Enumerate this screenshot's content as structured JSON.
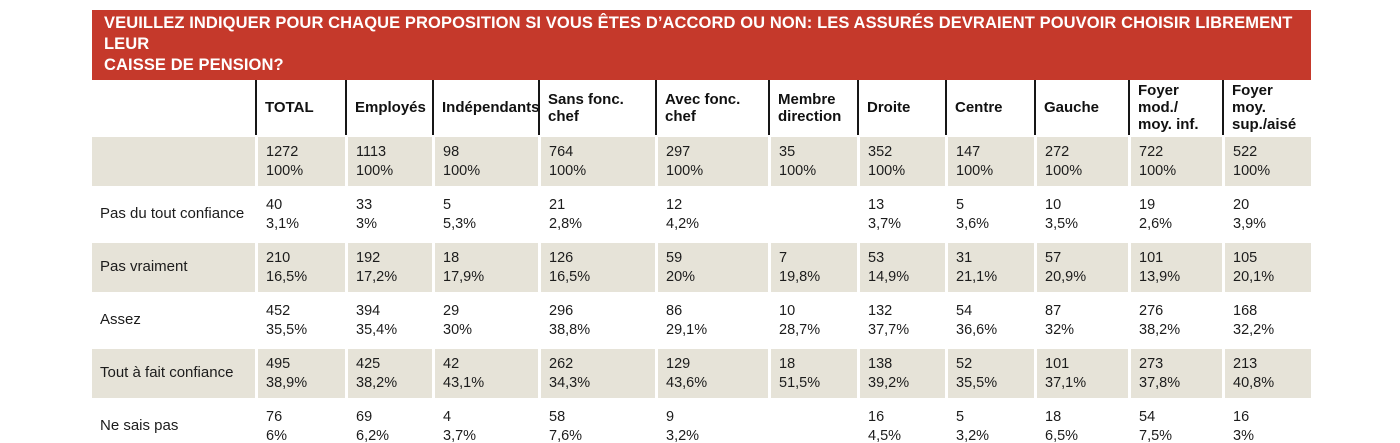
{
  "banner": {
    "title": "VEUILLEZ INDIQUER POUR CHAQUE PROPOSITION SI VOUS ÊTES D’ACCORD OU NON: LES ASSURÉS DEVRAIENT POUVOIR CHOISIR LIBREMENT LEUR\nCAISSE DE PENSION?",
    "background": "#c5392b"
  },
  "colors": {
    "banner_red": "#c5392b",
    "stripe_beige": "#e6e3d8",
    "header_separator": "#161616",
    "bottom_rule": "#514e47",
    "text": "#1c1c1c"
  },
  "chart_data": {
    "type": "table",
    "title": "VEUILLEZ INDIQUER POUR CHAQUE PROPOSITION SI VOUS ÊTES D’ACCORD OU NON: LES ASSURÉS DEVRAIENT POUVOIR CHOISIR LIBREMENT LEUR CAISSE DE PENSION?",
    "columns": [
      "TOTAL",
      "Employés",
      "Indépendants",
      "Sans fonc. chef",
      "Avec fonc. chef",
      "Membre\ndirection",
      "Droite",
      "Centre",
      "Gauche",
      "Foyer mod./\nmoy. inf.",
      "Foyer moy.\nsup./aisé"
    ],
    "rows": [
      {
        "label": "",
        "cells": [
          [
            "1272",
            "100%"
          ],
          [
            "1113",
            "100%"
          ],
          [
            "98",
            "100%"
          ],
          [
            "764",
            "100%"
          ],
          [
            "297",
            "100%"
          ],
          [
            "35",
            "100%"
          ],
          [
            "352",
            "100%"
          ],
          [
            "147",
            "100%"
          ],
          [
            "272",
            "100%"
          ],
          [
            "722",
            "100%"
          ],
          [
            "522",
            "100%"
          ]
        ]
      },
      {
        "label": "Pas du tout confiance",
        "cells": [
          [
            "40",
            "3,1%"
          ],
          [
            "33",
            "3%"
          ],
          [
            "5",
            "5,3%"
          ],
          [
            "21",
            "2,8%"
          ],
          [
            "12",
            "4,2%"
          ],
          null,
          [
            "13",
            "3,7%"
          ],
          [
            "5",
            "3,6%"
          ],
          [
            "10",
            "3,5%"
          ],
          [
            "19",
            "2,6%"
          ],
          [
            "20",
            "3,9%"
          ]
        ]
      },
      {
        "label": "Pas vraiment",
        "cells": [
          [
            "210",
            "16,5%"
          ],
          [
            "192",
            "17,2%"
          ],
          [
            "18",
            "17,9%"
          ],
          [
            "126",
            "16,5%"
          ],
          [
            "59",
            "20%"
          ],
          [
            "7",
            "19,8%"
          ],
          [
            "53",
            "14,9%"
          ],
          [
            "31",
            "21,1%"
          ],
          [
            "57",
            "20,9%"
          ],
          [
            "101",
            "13,9%"
          ],
          [
            "105",
            "20,1%"
          ]
        ]
      },
      {
        "label": "Assez",
        "cells": [
          [
            "452",
            "35,5%"
          ],
          [
            "394",
            "35,4%"
          ],
          [
            "29",
            "30%"
          ],
          [
            "296",
            "38,8%"
          ],
          [
            "86",
            "29,1%"
          ],
          [
            "10",
            "28,7%"
          ],
          [
            "132",
            "37,7%"
          ],
          [
            "54",
            "36,6%"
          ],
          [
            "87",
            "32%"
          ],
          [
            "276",
            "38,2%"
          ],
          [
            "168",
            "32,2%"
          ]
        ]
      },
      {
        "label": "Tout à fait confiance",
        "cells": [
          [
            "495",
            "38,9%"
          ],
          [
            "425",
            "38,2%"
          ],
          [
            "42",
            "43,1%"
          ],
          [
            "262",
            "34,3%"
          ],
          [
            "129",
            "43,6%"
          ],
          [
            "18",
            "51,5%"
          ],
          [
            "138",
            "39,2%"
          ],
          [
            "52",
            "35,5%"
          ],
          [
            "101",
            "37,1%"
          ],
          [
            "273",
            "37,8%"
          ],
          [
            "213",
            "40,8%"
          ]
        ]
      },
      {
        "label": "Ne sais pas",
        "cells": [
          [
            "76",
            "6%"
          ],
          [
            "69",
            "6,2%"
          ],
          [
            "4",
            "3,7%"
          ],
          [
            "58",
            "7,6%"
          ],
          [
            "9",
            "3,2%"
          ],
          null,
          [
            "16",
            "4,5%"
          ],
          [
            "5",
            "3,2%"
          ],
          [
            "18",
            "6,5%"
          ],
          [
            "54",
            "7,5%"
          ],
          [
            "16",
            "3%"
          ]
        ]
      }
    ]
  }
}
